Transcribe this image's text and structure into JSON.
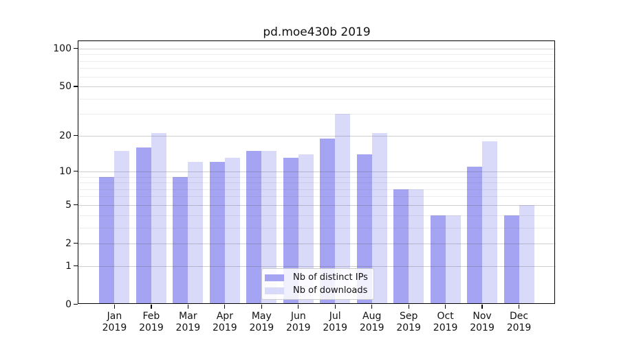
{
  "title": "pd.moe430b 2019",
  "colors": {
    "bar_ips": "#a4a4f2",
    "bar_downloads": "#d9d9fa",
    "grid_major": "rgba(80,80,80,0.28)",
    "grid_minor": "rgba(80,80,80,0.11)",
    "axis": "#000000"
  },
  "legend": {
    "items": [
      {
        "label": "Nb of distinct IPs",
        "series": "ips"
      },
      {
        "label": "Nb of downloads",
        "series": "downloads"
      }
    ]
  },
  "chart_data": {
    "type": "bar",
    "title": "pd.moe430b 2019",
    "categories": [
      "Jan 2019",
      "Feb 2019",
      "Mar 2019",
      "Apr 2019",
      "May 2019",
      "Jun 2019",
      "Jul 2019",
      "Aug 2019",
      "Sep 2019",
      "Oct 2019",
      "Nov 2019",
      "Dec 2019"
    ],
    "series": [
      {
        "name": "Nb of distinct IPs",
        "values": [
          9,
          16,
          9,
          12,
          15,
          13,
          19,
          14,
          7,
          4,
          11,
          4
        ]
      },
      {
        "name": "Nb of downloads",
        "values": [
          15,
          21,
          12,
          13,
          15,
          14,
          30,
          21,
          7,
          4,
          18,
          5
        ]
      }
    ],
    "xlabel": "",
    "ylabel": "",
    "yscale": "log1p",
    "ylim": [
      0,
      116
    ],
    "y_ticks": [
      0,
      1,
      2,
      5,
      10,
      20,
      50,
      100
    ],
    "y_minor_gridlines": [
      3,
      4,
      6,
      7,
      8,
      9,
      30,
      40,
      60,
      70,
      80,
      90
    ],
    "grid": true,
    "legend_position": "lower center"
  }
}
